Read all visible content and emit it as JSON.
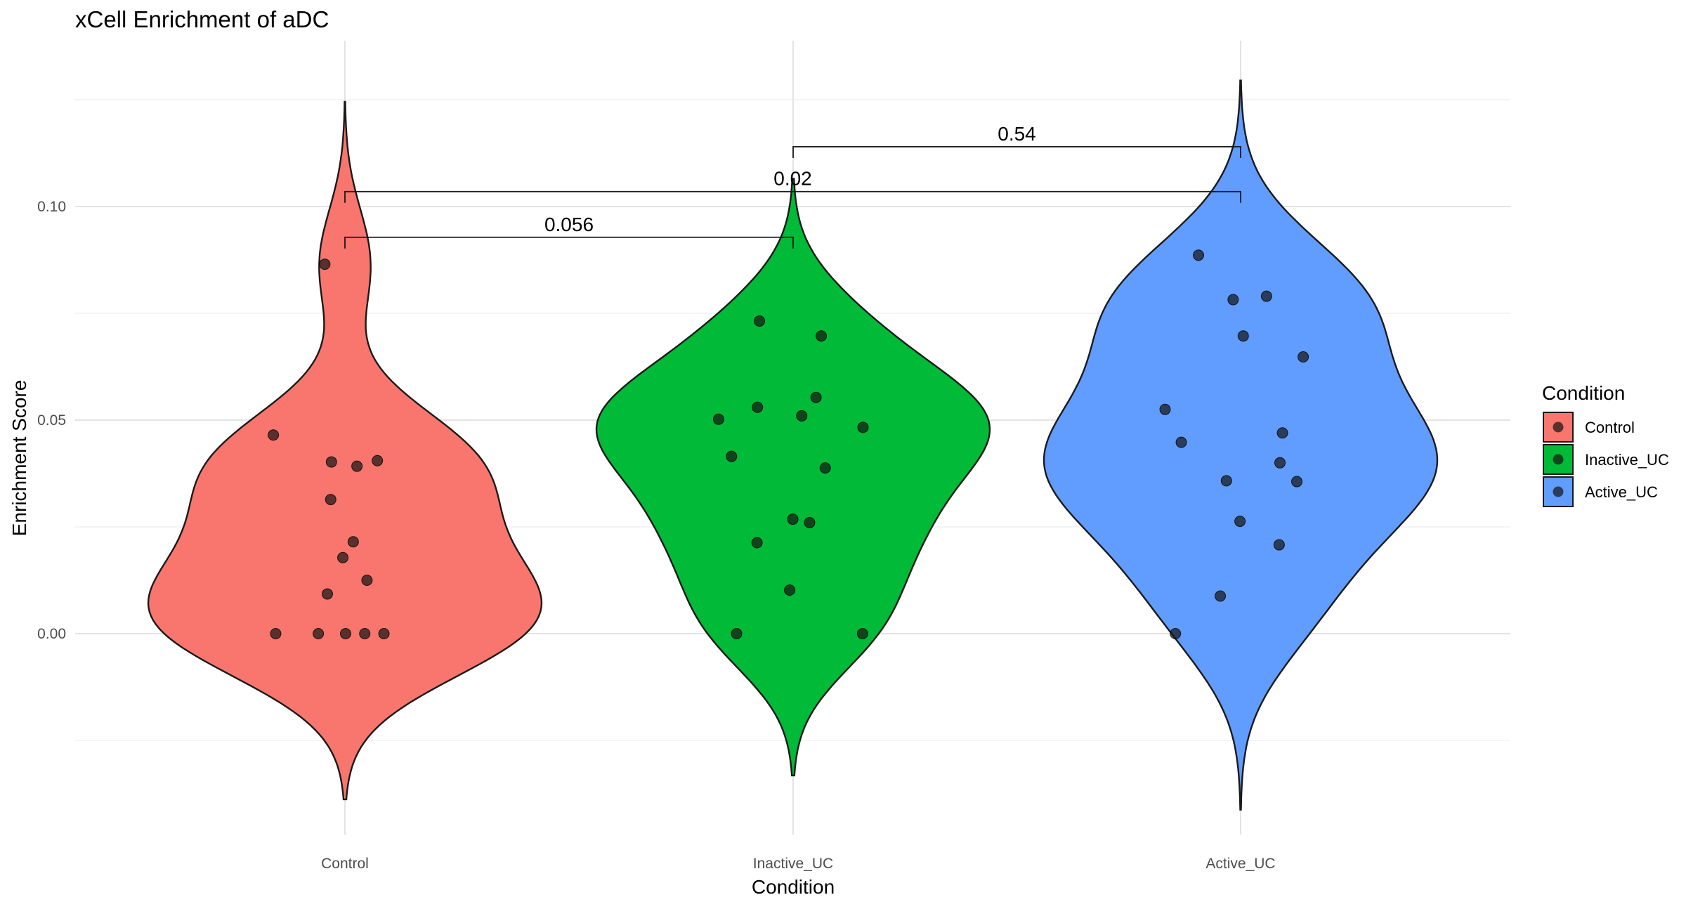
{
  "chart_data": {
    "type": "violin",
    "title": "xCell Enrichment of aDC",
    "xlabel": "Condition",
    "ylabel": "Enrichment Score",
    "ylim": [
      -0.04,
      0.13
    ],
    "y_ticks": [
      0.0,
      0.05,
      0.1
    ],
    "y_tick_labels": [
      "0.00",
      "0.05",
      "0.10"
    ],
    "grid": true,
    "legend": {
      "title": "Condition",
      "placement": "right"
    },
    "categories": [
      "Control",
      "Inactive_UC",
      "Active_UC"
    ],
    "series": [
      {
        "name": "Control",
        "color": "#F8766D",
        "violin_range": [
          -0.0388,
          0.1245
        ],
        "points": [
          0.0865,
          0.0465,
          0.0405,
          0.0402,
          0.0392,
          0.0314,
          0.0215,
          0.0178,
          0.0125,
          0.0093,
          0.0,
          0.0,
          0.0,
          0.0,
          0.0
        ]
      },
      {
        "name": "Inactive_UC",
        "color": "#00BA38",
        "violin_range": [
          -0.0332,
          0.1065
        ],
        "points": [
          0.0732,
          0.0697,
          0.0553,
          0.053,
          0.051,
          0.0502,
          0.0483,
          0.0415,
          0.0388,
          0.0268,
          0.026,
          0.0213,
          0.0102,
          0.0,
          0.0
        ]
      },
      {
        "name": "Active_UC",
        "color": "#619CFF",
        "violin_range": [
          -0.0412,
          0.1295
        ],
        "points": [
          0.0886,
          0.079,
          0.0782,
          0.0697,
          0.0648,
          0.0525,
          0.047,
          0.0448,
          0.04,
          0.0358,
          0.0356,
          0.0263,
          0.0208,
          0.0088,
          0.0
        ]
      }
    ],
    "comparisons": [
      {
        "groups": [
          "Control",
          "Inactive_UC"
        ],
        "label": "0.056",
        "y": 0.0928
      },
      {
        "groups": [
          "Control",
          "Active_UC"
        ],
        "label": "0.02",
        "y": 0.1035
      },
      {
        "groups": [
          "Inactive_UC",
          "Active_UC"
        ],
        "label": "0.54",
        "y": 0.114
      }
    ]
  }
}
